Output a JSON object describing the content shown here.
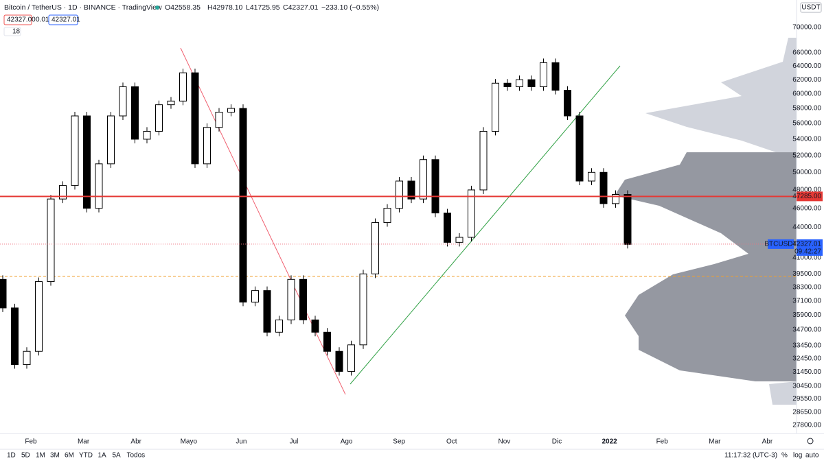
{
  "header": {
    "symbol": "Bitcoin / TetherUS · 1D · BINANCE · TradingView",
    "open": "O42558.35",
    "high": "H42978.10",
    "low": "L41725.95",
    "close": "C42327.01",
    "change": "−233.10 (−0.55%)",
    "bid": "42327.00",
    "spread": "0.01",
    "ask": "42327.01",
    "indicator_count": "18"
  },
  "chart_data": {
    "type": "candlestick",
    "open": 39000,
    "close": [
      36500,
      32000,
      33000,
      38800,
      47000,
      48500,
      57000,
      46000,
      51000,
      57000,
      61000,
      54000,
      55000,
      58500,
      59000,
      63000,
      51000,
      55500,
      57500,
      58000,
      37000,
      38000,
      34500,
      35500,
      39000,
      35500,
      34500,
      33000,
      31500,
      33500,
      39500,
      44500,
      46000,
      49000,
      47000,
      51500,
      45500,
      42500,
      43000,
      48000,
      55000,
      61500,
      61000,
      62000,
      61000,
      64500,
      60500,
      57000,
      49000,
      50000,
      46500,
      47500,
      42300
    ],
    "up_color": "#ffffff",
    "down_color": "#000000",
    "categories": [
      "Feb",
      "Mar",
      "Abr",
      "Mayo",
      "Jun",
      "Jul",
      "Ago",
      "Sep",
      "Oct",
      "Nov",
      "Dic",
      "2022",
      "Feb",
      "Mar",
      "Abr"
    ],
    "ylim": [
      27270,
      74600
    ],
    "log": true,
    "yticks": [
      {
        "value": 70000,
        "label": "70000.00"
      },
      {
        "value": 66000,
        "label": "66000.00"
      },
      {
        "value": 64000,
        "label": "64000.00"
      },
      {
        "value": 62000,
        "label": "62000.00"
      },
      {
        "value": 60000,
        "label": "60000.00"
      },
      {
        "value": 58000,
        "label": "58000.00"
      },
      {
        "value": 56000,
        "label": "56000.00"
      },
      {
        "value": 54000,
        "label": "54000.00"
      },
      {
        "value": 52000,
        "label": "52000.00"
      },
      {
        "value": 50000,
        "label": "50000.00"
      },
      {
        "value": 48000,
        "label": "48000.00"
      },
      {
        "value": 46000,
        "label": "46000.00"
      },
      {
        "value": 44000,
        "label": "44000.00"
      },
      {
        "value": 41000,
        "label": "41000.00"
      },
      {
        "value": 39500,
        "label": "39500.00"
      },
      {
        "value": 38300,
        "label": "38300.00"
      },
      {
        "value": 37100,
        "label": "37100.00"
      },
      {
        "value": 35900,
        "label": "35900.00"
      },
      {
        "value": 34700,
        "label": "34700.00"
      },
      {
        "value": 33450,
        "label": "33450.00"
      },
      {
        "value": 32450,
        "label": "32450.00"
      },
      {
        "value": 31450,
        "label": "31450.00"
      },
      {
        "value": 30450,
        "label": "30450.00"
      },
      {
        "value": 29550,
        "label": "29550.00"
      },
      {
        "value": 28650,
        "label": "28650.00"
      },
      {
        "value": 27800,
        "label": "27800.00"
      }
    ],
    "level": {
      "value": 47285,
      "label": "47285.00",
      "color": "#e53935"
    },
    "last": {
      "value": 42327.01,
      "symbol": "BTCUSDT",
      "countdown": "09:42:27",
      "color": "#2962ff"
    },
    "currency": "USDT"
  },
  "toolbar": {
    "ranges": [
      "1D",
      "5D",
      "1M",
      "3M",
      "6M",
      "YTD",
      "1A",
      "5A",
      "Todos"
    ],
    "clock": "11:17:32 (UTC-3)",
    "percent": "%",
    "log": "log",
    "auto": "auto"
  }
}
